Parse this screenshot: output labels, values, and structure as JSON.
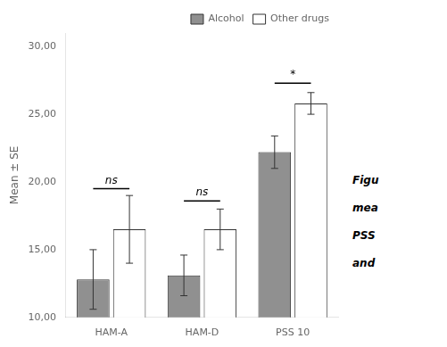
{
  "chart_data": {
    "type": "bar",
    "categories": [
      "HAM-A",
      "HAM-D",
      "PSS 10"
    ],
    "series": [
      {
        "name": "Alcohol",
        "color": "#909090",
        "values": [
          12.8,
          13.1,
          22.2
        ],
        "errors": [
          2.2,
          1.5,
          1.2
        ]
      },
      {
        "name": "Other drugs",
        "color": "#ffffff",
        "values": [
          16.5,
          16.5,
          25.8
        ],
        "errors": [
          2.5,
          1.5,
          0.8
        ]
      }
    ],
    "ylabel": "Mean ± SE",
    "ylim": [
      10.0,
      31.0
    ],
    "yticks": [
      {
        "value": 10.0,
        "label": "10,00"
      },
      {
        "value": 15.0,
        "label": "15,00"
      },
      {
        "value": 20.0,
        "label": "20,00"
      },
      {
        "value": 25.0,
        "label": "25,00"
      },
      {
        "value": 30.0,
        "label": "30,00"
      }
    ],
    "annotations": [
      {
        "category": "HAM-A",
        "text": "ns",
        "line_y": 19.5,
        "text_y": 19.7
      },
      {
        "category": "HAM-D",
        "text": "ns",
        "line_y": 18.6,
        "text_y": 18.8
      },
      {
        "category": "PSS 10",
        "text": "*",
        "line_y": 27.3,
        "text_y": 27.5
      }
    ],
    "caption": [
      "Figu",
      "mea",
      "PSS",
      "and"
    ],
    "legend": "upper right",
    "grid": false
  }
}
